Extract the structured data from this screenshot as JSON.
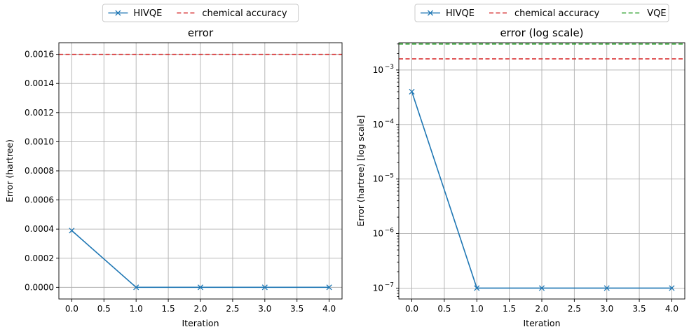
{
  "colors": {
    "hivqe": "#1f77b4",
    "chemical_accuracy": "#d62728",
    "vqe": "#2ca02c",
    "grid": "#b0b0b0"
  },
  "chart_data": [
    {
      "type": "line",
      "title": "error",
      "xlabel": "Iteration",
      "ylabel": "Error (hartree)",
      "yscale": "linear",
      "xlim": [
        -0.2,
        4.2
      ],
      "ylim": [
        -8e-05,
        0.00168
      ],
      "xticks": [
        0,
        0.5,
        1,
        1.5,
        2,
        2.5,
        3,
        3.5,
        4
      ],
      "xtick_labels": [
        "0.0",
        "0.5",
        "1.0",
        "1.5",
        "2.0",
        "2.5",
        "3.0",
        "3.5",
        "4.0"
      ],
      "yticks": [
        0,
        0.0002,
        0.0004,
        0.0006,
        0.0008,
        0.001,
        0.0012,
        0.0014,
        0.0016
      ],
      "ytick_labels": [
        "0.0000",
        "0.0002",
        "0.0004",
        "0.0006",
        "0.0008",
        "0.0010",
        "0.0012",
        "0.0014",
        "0.0016"
      ],
      "grid": true,
      "legend_position": "above-center",
      "series": [
        {
          "name": "HIVQE",
          "style": "line-x-marker",
          "x": [
            0,
            1,
            2,
            3,
            4
          ],
          "y": [
            0.00039,
            1e-07,
            1e-07,
            1e-07,
            1e-07
          ]
        }
      ],
      "hlines": [
        {
          "name": "chemical accuracy",
          "y": 0.0016,
          "style": "dashed",
          "color": "#d62728"
        }
      ]
    },
    {
      "type": "line",
      "title": "error (log scale)",
      "xlabel": "Iteration",
      "ylabel": "Error (hartree) [log scale]",
      "yscale": "log",
      "xlim": [
        -0.2,
        4.2
      ],
      "ylim_exp": [
        -7.2,
        -2.5
      ],
      "xticks": [
        0,
        0.5,
        1,
        1.5,
        2,
        2.5,
        3,
        3.5,
        4
      ],
      "xtick_labels": [
        "0.0",
        "0.5",
        "1.0",
        "1.5",
        "2.0",
        "2.5",
        "3.0",
        "3.5",
        "4.0"
      ],
      "ytick_exponents": [
        -7,
        -6,
        -5,
        -4,
        -3
      ],
      "ytick_base": "10",
      "ytick_labels_exp": [
        "−7",
        "−6",
        "−5",
        "−4",
        "−3"
      ],
      "grid": true,
      "legend_position": "above-center",
      "series": [
        {
          "name": "HIVQE",
          "style": "line-x-marker",
          "x": [
            0,
            1,
            2,
            3,
            4
          ],
          "y": [
            0.0004,
            1e-07,
            1e-07,
            1e-07,
            1e-07
          ]
        }
      ],
      "hlines": [
        {
          "name": "chemical accuracy",
          "y": 0.0016,
          "style": "dashed",
          "color": "#d62728"
        },
        {
          "name": "VQE",
          "y": 0.003,
          "style": "dashed",
          "color": "#2ca02c"
        }
      ]
    }
  ]
}
